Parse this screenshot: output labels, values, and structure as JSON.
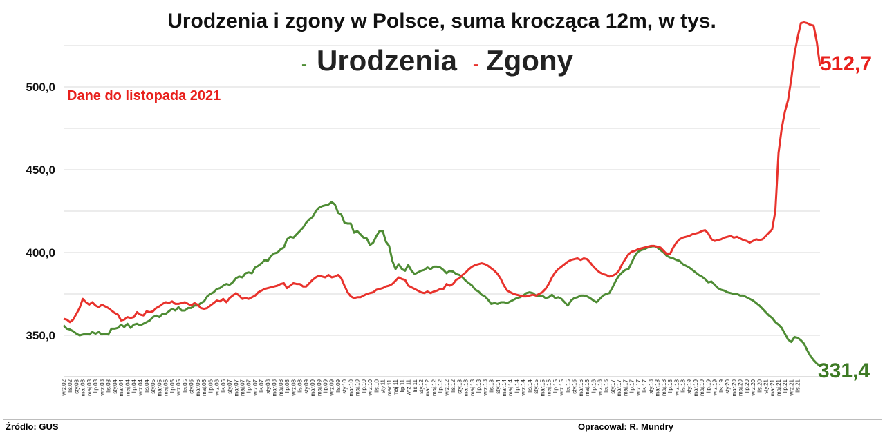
{
  "footer": {
    "source": "Źródło: GUS",
    "author": "Opracował: R. Mundry"
  },
  "chart_data": {
    "type": "line",
    "title": "Urodzenia i zgony w Polsce, suma krocząca 12m, w tys.",
    "note": "Dane do listopada 2021",
    "legend_placement": "top-center",
    "grid": true,
    "ylim": [
      325,
      545
    ],
    "yticks": [
      350,
      400,
      450,
      500
    ],
    "ytick_labels": [
      "350,0",
      "400,0",
      "450,0",
      "500,0"
    ],
    "xlabel": "",
    "ylabel": "",
    "x_start": "wrz.02",
    "x_end": "lis.21",
    "x_tick_labels": [
      "wrz.02",
      "lis.02",
      "sty.03",
      "mar.03",
      "maj.03",
      "lip.03",
      "wrz.03",
      "lis.03",
      "sty.04",
      "mar.04",
      "maj.04",
      "lip.04",
      "wrz.04",
      "lis.04",
      "sty.05",
      "mar.05",
      "maj.05",
      "lip.05",
      "wrz.05",
      "lis.05",
      "sty.06",
      "mar.06",
      "maj.06",
      "lip.06",
      "wrz.06",
      "lis.06",
      "sty.07",
      "mar.07",
      "maj.07",
      "lip.07",
      "wrz.07",
      "lis.07",
      "sty.08",
      "mar.08",
      "maj.08",
      "lip.08",
      "wrz.08",
      "lis.08",
      "sty.09",
      "mar.09",
      "maj.09",
      "lip.09",
      "wrz.09",
      "lis.09",
      "sty.10",
      "mar.10",
      "maj.10",
      "lip.10",
      "wrz.10",
      "lis.10",
      "sty.11",
      "mar.11",
      "maj.11",
      "lip.11",
      "wrz.11",
      "lis.11",
      "sty.12",
      "mar.12",
      "maj.12",
      "lip.12",
      "wrz.12",
      "lis.12",
      "sty.13",
      "mar.13",
      "maj.13",
      "lip.13",
      "wrz.13",
      "lis.13",
      "sty.14",
      "mar.14",
      "maj.14",
      "lip.14",
      "wrz.14",
      "lis.14",
      "sty.15",
      "mar.15",
      "maj.15",
      "lip.15",
      "wrz.15",
      "lis.15",
      "sty.16",
      "mar.16",
      "maj.16",
      "lip.16",
      "wrz.16",
      "lis.16",
      "sty.17",
      "mar.17",
      "maj.17",
      "lip.17",
      "wrz.17",
      "lis.17",
      "sty.18",
      "mar.18",
      "maj.18",
      "lip.18",
      "wrz.18",
      "lis.18",
      "sty.19",
      "mar.19",
      "maj.19",
      "lip.19",
      "wrz.19",
      "lis.19",
      "sty.20",
      "mar.20",
      "maj.20",
      "lip.20",
      "wrz.20",
      "lis.20",
      "sty.21",
      "mar.21",
      "maj.21",
      "lip.21",
      "wrz.21",
      "lis.21"
    ],
    "series": [
      {
        "name": "Urodzenia",
        "color": "#4e8c34",
        "end_label": "331,4",
        "end_label_color": "#3d7a24",
        "values": [
          356.0,
          354.0,
          353.5,
          352.5,
          351.0,
          350.0,
          350.5,
          351.0,
          350.5,
          352.0,
          351.0,
          352.0,
          350.5,
          351.0,
          350.5,
          354.0,
          354.0,
          354.5,
          356.5,
          355.0,
          357.0,
          354.5,
          356.5,
          357.0,
          356.0,
          357.0,
          358.0,
          359.0,
          361.0,
          362.0,
          361.0,
          363.0,
          363.0,
          364.5,
          366.0,
          365.0,
          367.0,
          365.0,
          365.0,
          366.5,
          366.5,
          368.0,
          368.0,
          369.5,
          370.5,
          373.5,
          375.0,
          376.0,
          378.0,
          378.5,
          380.0,
          381.0,
          380.5,
          382.0,
          384.5,
          385.5,
          385.0,
          387.5,
          388.0,
          387.5,
          391.0,
          392.0,
          393.5,
          395.5,
          395.0,
          398.0,
          399.5,
          400.0,
          402.0,
          403.0,
          408.0,
          409.5,
          409.0,
          411.0,
          413.0,
          415.0,
          418.0,
          420.0,
          421.5,
          425.0,
          427.0,
          428.0,
          428.5,
          429.0,
          430.5,
          429.0,
          424.0,
          423.0,
          418.0,
          417.5,
          417.5,
          412.0,
          413.0,
          411.0,
          409.0,
          408.5,
          404.5,
          406.0,
          410.0,
          413.0,
          413.0,
          406.5,
          404.0,
          395.0,
          390.0,
          393.0,
          390.0,
          389.0,
          392.5,
          389.0,
          387.0,
          388.0,
          389.0,
          389.5,
          391.0,
          390.0,
          391.5,
          391.5,
          391.0,
          389.5,
          387.5,
          389.0,
          388.5,
          387.0,
          386.5,
          385.0,
          383.0,
          381.5,
          380.0,
          377.5,
          376.5,
          374.5,
          373.5,
          371.5,
          369.0,
          369.5,
          369.0,
          370.0,
          370.0,
          369.5,
          370.5,
          371.5,
          372.5,
          373.0,
          374.0,
          375.5,
          376.0,
          375.5,
          374.0,
          373.5,
          374.0,
          372.5,
          373.0,
          374.5,
          372.5,
          373.0,
          372.0,
          370.0,
          368.0,
          371.0,
          372.5,
          373.0,
          374.0,
          374.0,
          373.5,
          372.5,
          371.0,
          370.0,
          372.0,
          374.0,
          375.0,
          375.5,
          379.0,
          383.0,
          386.0,
          388.0,
          389.5,
          390.0,
          394.0,
          398.0,
          400.5,
          401.5,
          402.0,
          403.0,
          403.5,
          404.0,
          403.0,
          401.5,
          400.0,
          398.0,
          397.0,
          396.5,
          395.5,
          395.0,
          393.0,
          392.0,
          391.0,
          389.5,
          388.0,
          386.5,
          385.5,
          384.0,
          382.0,
          382.5,
          380.5,
          378.5,
          377.5,
          377.0,
          376.0,
          375.5,
          375.0,
          375.0,
          374.0,
          374.0,
          373.0,
          372.0,
          371.0,
          369.5,
          368.0,
          366.0,
          364.0,
          362.0,
          360.5,
          358.0,
          356.5,
          354.5,
          351.0,
          347.5,
          346.0,
          349.0,
          348.5,
          347.0,
          345.0,
          341.0,
          337.5,
          335.0,
          333.0,
          331.4
        ]
      },
      {
        "name": "Zgony",
        "color": "#e8322c",
        "end_label": "512,7",
        "end_label_color": "#e8201c",
        "values": [
          360.0,
          359.5,
          358.0,
          359.5,
          363.0,
          366.5,
          372.0,
          370.0,
          368.5,
          370.0,
          368.0,
          367.0,
          368.5,
          367.5,
          366.5,
          365.0,
          363.5,
          362.5,
          359.0,
          359.5,
          361.0,
          360.5,
          361.0,
          364.0,
          362.5,
          362.0,
          364.5,
          364.0,
          364.5,
          366.5,
          367.5,
          369.0,
          370.0,
          369.5,
          370.5,
          369.0,
          369.0,
          369.5,
          370.0,
          369.0,
          368.0,
          369.5,
          368.5,
          366.5,
          366.0,
          366.5,
          368.0,
          369.5,
          371.0,
          370.5,
          372.0,
          370.0,
          372.5,
          374.0,
          375.5,
          374.0,
          372.0,
          372.5,
          372.0,
          373.0,
          374.0,
          376.0,
          377.0,
          378.0,
          378.5,
          379.0,
          379.5,
          380.0,
          381.0,
          381.5,
          378.5,
          380.0,
          381.5,
          381.0,
          381.0,
          379.5,
          379.5,
          381.5,
          383.5,
          385.0,
          386.0,
          385.5,
          385.0,
          386.5,
          385.0,
          385.5,
          386.5,
          384.5,
          380.0,
          376.0,
          373.5,
          372.5,
          373.0,
          373.0,
          374.0,
          375.0,
          375.5,
          376.0,
          377.5,
          378.0,
          378.5,
          379.5,
          380.0,
          381.0,
          383.0,
          385.0,
          384.0,
          383.5,
          380.0,
          379.0,
          378.0,
          377.0,
          376.0,
          375.5,
          376.5,
          375.5,
          376.5,
          377.0,
          378.0,
          378.0,
          381.0,
          380.0,
          381.0,
          383.5,
          384.5,
          386.5,
          388.0,
          390.0,
          391.5,
          392.5,
          393.0,
          393.5,
          393.0,
          392.0,
          390.5,
          389.0,
          387.0,
          384.0,
          380.0,
          377.0,
          376.0,
          375.0,
          374.5,
          374.0,
          373.5,
          373.5,
          374.0,
          374.5,
          374.0,
          375.0,
          376.0,
          378.0,
          381.0,
          385.0,
          388.0,
          390.0,
          391.5,
          393.0,
          394.5,
          395.5,
          396.0,
          396.5,
          395.5,
          396.5,
          396.0,
          394.0,
          391.5,
          389.5,
          388.0,
          387.0,
          386.5,
          385.5,
          386.0,
          387.0,
          389.0,
          393.0,
          396.0,
          399.0,
          400.5,
          401.0,
          402.0,
          402.5,
          403.0,
          403.5,
          404.0,
          404.0,
          403.5,
          403.0,
          401.0,
          399.0,
          399.0,
          403.0,
          406.0,
          408.0,
          409.0,
          409.5,
          410.0,
          411.0,
          411.5,
          412.0,
          413.0,
          413.5,
          411.5,
          408.0,
          407.0,
          407.5,
          408.0,
          409.0,
          409.5,
          410.0,
          409.0,
          409.5,
          408.5,
          407.5,
          407.0,
          406.0,
          407.0,
          408.0,
          407.5,
          408.0,
          410.0,
          412.0,
          414.0,
          425.0,
          460.0,
          475.0,
          485.0,
          492.0,
          505.0,
          520.0,
          530.0,
          538.5,
          539.0,
          538.5,
          537.5,
          537.0,
          527.0,
          512.7
        ]
      }
    ]
  }
}
